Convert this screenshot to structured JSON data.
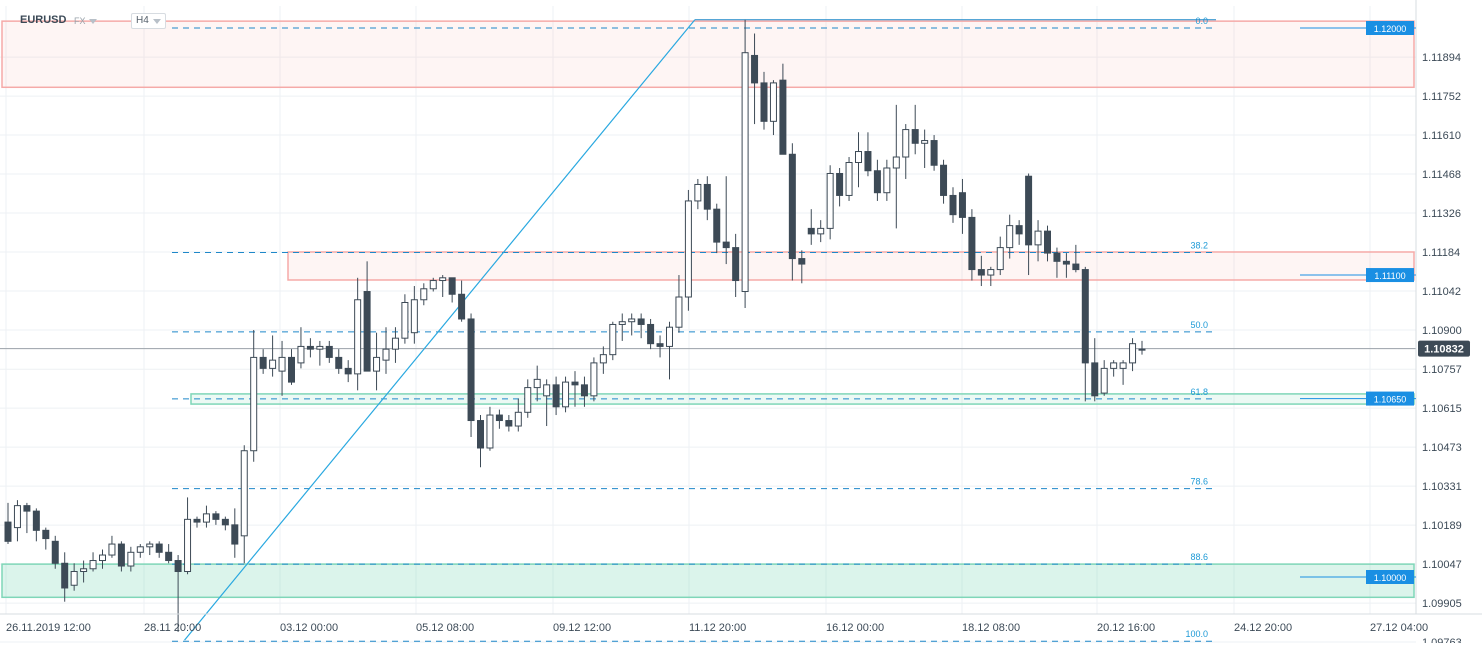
{
  "header": {
    "symbol": "EURUSD",
    "symbol_type": "FX",
    "timeframe": "H4"
  },
  "colors": {
    "bull_fill": "#ffffff",
    "bear_fill": "#3d4a56",
    "candle_stroke": "#3d4a56",
    "fib_line": "#1e88c9",
    "fib_label": "#1e9ad6",
    "resistance_zone": "#f5aaa8",
    "support_zone": "#7fd6b8",
    "price_tag": "#1a8fe3",
    "current_tag": "#3d4a56",
    "trend_line": "#29a8e0"
  },
  "chart_data": {
    "type": "candlestick",
    "symbol": "EURUSD",
    "timeframe": "H4",
    "y_axis": {
      "min": 1.0976,
      "max": 1.1205,
      "ticks": [
        "1.11894",
        "1.11752",
        "1.11610",
        "1.11468",
        "1.11326",
        "1.11184",
        "1.11042",
        "1.10900",
        "1.10757",
        "1.10615",
        "1.10473",
        "1.10331",
        "1.10189",
        "1.10047",
        "1.09905",
        "1.09763"
      ]
    },
    "x_axis": {
      "labels": [
        "26.11.2019  12:00",
        "28.11  20:00",
        "03.12  00:00",
        "05.12  08:00",
        "09.12  12:00",
        "11.12  20:00",
        "16.12  00:00",
        "18.12  08:00",
        "20.12  16:00",
        "24.12  20:00",
        "27.12  04:00"
      ]
    },
    "candles": [
      [
        1.102,
        1.1027,
        1.1012,
        1.1013
      ],
      [
        1.1018,
        1.1028,
        1.1013,
        1.1026
      ],
      [
        1.1026,
        1.1027,
        1.1016,
        1.1024
      ],
      [
        1.1024,
        1.1025,
        1.1013,
        1.1017
      ],
      [
        1.1017,
        1.1018,
        1.101,
        1.1014
      ],
      [
        1.1013,
        1.1015,
        1.1003,
        1.1005
      ],
      [
        1.1005,
        1.1009,
        1.0991,
        1.0996
      ],
      [
        1.0997,
        1.1005,
        1.0995,
        1.1002
      ],
      [
        1.1002,
        1.1006,
        1.0998,
        1.1003
      ],
      [
        1.1003,
        1.1009,
        1.1002,
        1.1006
      ],
      [
        1.1006,
        1.101,
        1.1003,
        1.1008
      ],
      [
        1.1008,
        1.1015,
        1.1007,
        1.1012
      ],
      [
        1.1012,
        1.1013,
        1.1002,
        1.1004
      ],
      [
        1.1004,
        1.1011,
        1.1002,
        1.1009
      ],
      [
        1.1009,
        1.1012,
        1.1007,
        1.1011
      ],
      [
        1.1011,
        1.1013,
        1.1008,
        1.1012
      ],
      [
        1.1012,
        1.1013,
        1.1007,
        1.1009
      ],
      [
        1.1009,
        1.1012,
        1.1005,
        1.1006
      ],
      [
        1.1006,
        1.1008,
        1.098,
        1.1002
      ],
      [
        1.1002,
        1.1029,
        1.1001,
        1.1021
      ],
      [
        1.1021,
        1.1022,
        1.1018,
        1.102
      ],
      [
        1.102,
        1.1026,
        1.1018,
        1.1023
      ],
      [
        1.1023,
        1.1024,
        1.1019,
        1.1021
      ],
      [
        1.1021,
        1.1022,
        1.1017,
        1.1019
      ],
      [
        1.1019,
        1.1025,
        1.1007,
        1.1012
      ],
      [
        1.1015,
        1.1048,
        1.1005,
        1.1046
      ],
      [
        1.1046,
        1.109,
        1.1042,
        1.108
      ],
      [
        1.108,
        1.1083,
        1.1074,
        1.1076
      ],
      [
        1.1076,
        1.1088,
        1.1073,
        1.1079
      ],
      [
        1.1075,
        1.1086,
        1.1066,
        1.108
      ],
      [
        1.108,
        1.1083,
        1.107,
        1.1071
      ],
      [
        1.1078,
        1.1091,
        1.1076,
        1.1084
      ],
      [
        1.1084,
        1.1087,
        1.108,
        1.1083
      ],
      [
        1.1083,
        1.1086,
        1.1077,
        1.1084
      ],
      [
        1.1084,
        1.1086,
        1.1078,
        1.108
      ],
      [
        1.108,
        1.1083,
        1.1074,
        1.1076
      ],
      [
        1.1076,
        1.1079,
        1.1071,
        1.1074
      ],
      [
        1.1074,
        1.1109,
        1.1068,
        1.1101
      ],
      [
        1.1104,
        1.1115,
        1.1077,
        1.1075
      ],
      [
        1.1075,
        1.1089,
        1.1068,
        1.108
      ],
      [
        1.1079,
        1.1091,
        1.1074,
        1.1083
      ],
      [
        1.1083,
        1.1091,
        1.1078,
        1.1087
      ],
      [
        1.1087,
        1.1103,
        1.1085,
        1.11
      ],
      [
        1.1089,
        1.1106,
        1.1085,
        1.1101
      ],
      [
        1.1101,
        1.1107,
        1.1099,
        1.1105
      ],
      [
        1.1105,
        1.1109,
        1.1104,
        1.1108
      ],
      [
        1.1108,
        1.111,
        1.1102,
        1.1109
      ],
      [
        1.1109,
        1.1109,
        1.11,
        1.1103
      ],
      [
        1.1103,
        1.1108,
        1.1093,
        1.1094
      ],
      [
        1.1094,
        1.1096,
        1.1051,
        1.1057
      ],
      [
        1.1057,
        1.1059,
        1.104,
        1.1047
      ],
      [
        1.1047,
        1.1062,
        1.1046,
        1.1059
      ],
      [
        1.1059,
        1.1061,
        1.1054,
        1.1057
      ],
      [
        1.1057,
        1.1059,
        1.1053,
        1.1055
      ],
      [
        1.1055,
        1.1065,
        1.1053,
        1.106
      ],
      [
        1.106,
        1.1072,
        1.1058,
        1.1069
      ],
      [
        1.1069,
        1.1077,
        1.1064,
        1.1072
      ],
      [
        1.1066,
        1.1072,
        1.1055,
        1.107
      ],
      [
        1.107,
        1.1073,
        1.1059,
        1.1062
      ],
      [
        1.1062,
        1.1073,
        1.106,
        1.1071
      ],
      [
        1.1071,
        1.1075,
        1.1062,
        1.107
      ],
      [
        1.107,
        1.1073,
        1.1062,
        1.1066
      ],
      [
        1.1066,
        1.108,
        1.1064,
        1.1078
      ],
      [
        1.1078,
        1.1084,
        1.1074,
        1.1081
      ],
      [
        1.1081,
        1.1093,
        1.1079,
        1.1092
      ],
      [
        1.1092,
        1.1096,
        1.1086,
        1.1093
      ],
      [
        1.1093,
        1.1096,
        1.1088,
        1.1094
      ],
      [
        1.1094,
        1.1096,
        1.1087,
        1.1092
      ],
      [
        1.1092,
        1.1094,
        1.1083,
        1.1085
      ],
      [
        1.1085,
        1.1088,
        1.108,
        1.1084
      ],
      [
        1.1084,
        1.1093,
        1.1072,
        1.1091
      ],
      [
        1.1091,
        1.111,
        1.1089,
        1.1102
      ],
      [
        1.1102,
        1.1141,
        1.1097,
        1.1137
      ],
      [
        1.1137,
        1.1145,
        1.1134,
        1.1143
      ],
      [
        1.1143,
        1.1146,
        1.113,
        1.1134
      ],
      [
        1.1134,
        1.1136,
        1.1118,
        1.1122
      ],
      [
        1.1122,
        1.1146,
        1.1114,
        1.112
      ],
      [
        1.112,
        1.1125,
        1.1102,
        1.1108
      ],
      [
        1.1104,
        1.1203,
        1.1098,
        1.1191
      ],
      [
        1.119,
        1.1198,
        1.1165,
        1.118
      ],
      [
        1.118,
        1.1184,
        1.1163,
        1.1166
      ],
      [
        1.1166,
        1.1181,
        1.1161,
        1.118
      ],
      [
        1.1181,
        1.1187,
        1.1156,
        1.1154
      ],
      [
        1.1154,
        1.1158,
        1.1108,
        1.1116
      ],
      [
        1.1116,
        1.1119,
        1.1107,
        1.1114
      ],
      [
        1.1127,
        1.1134,
        1.1121,
        1.1125
      ],
      [
        1.1125,
        1.113,
        1.1122,
        1.1127
      ],
      [
        1.1127,
        1.115,
        1.1123,
        1.1147
      ],
      [
        1.1147,
        1.1149,
        1.1135,
        1.1139
      ],
      [
        1.1139,
        1.1153,
        1.1137,
        1.1151
      ],
      [
        1.1151,
        1.1162,
        1.1142,
        1.1155
      ],
      [
        1.1155,
        1.1162,
        1.1146,
        1.1148
      ],
      [
        1.1148,
        1.1152,
        1.1137,
        1.114
      ],
      [
        1.114,
        1.1152,
        1.1137,
        1.1149
      ],
      [
        1.1149,
        1.1172,
        1.1127,
        1.1153
      ],
      [
        1.1153,
        1.1165,
        1.1145,
        1.1163
      ],
      [
        1.1163,
        1.1172,
        1.1154,
        1.1158
      ],
      [
        1.1158,
        1.1163,
        1.1149,
        1.1159
      ],
      [
        1.1159,
        1.1161,
        1.1148,
        1.115
      ],
      [
        1.115,
        1.1152,
        1.1136,
        1.1139
      ],
      [
        1.1139,
        1.1142,
        1.1129,
        1.1132
      ],
      [
        1.114,
        1.1145,
        1.1125,
        1.1131
      ],
      [
        1.1131,
        1.1134,
        1.1108,
        1.1112
      ],
      [
        1.1112,
        1.1117,
        1.1106,
        1.111
      ],
      [
        1.111,
        1.1113,
        1.1106,
        1.1112
      ],
      [
        1.1112,
        1.1124,
        1.111,
        1.112
      ],
      [
        1.112,
        1.1132,
        1.1116,
        1.1128
      ],
      [
        1.1128,
        1.113,
        1.1121,
        1.1125
      ],
      [
        1.1146,
        1.1147,
        1.111,
        1.1121
      ],
      [
        1.1121,
        1.113,
        1.1115,
        1.1126
      ],
      [
        1.1126,
        1.1128,
        1.1115,
        1.1118
      ],
      [
        1.1118,
        1.112,
        1.1109,
        1.1115
      ],
      [
        1.1115,
        1.1118,
        1.1109,
        1.1114
      ],
      [
        1.1114,
        1.1121,
        1.1111,
        1.1112
      ],
      [
        1.1112,
        1.1113,
        1.1064,
        1.1078
      ],
      [
        1.1078,
        1.1087,
        1.1064,
        1.1066
      ],
      [
        1.1067,
        1.1079,
        1.1066,
        1.1076
      ],
      [
        1.1076,
        1.1079,
        1.1073,
        1.1078
      ],
      [
        1.1076,
        1.1079,
        1.107,
        1.1078
      ],
      [
        1.1078,
        1.1087,
        1.1075,
        1.1085
      ],
      [
        1.1083,
        1.1086,
        1.1081,
        1.1083
      ]
    ],
    "fib_levels": [
      {
        "label": "0.0",
        "price": 1.12
      },
      {
        "label": "38.2",
        "price": 1.11182
      },
      {
        "label": "50.0",
        "price": 1.10893
      },
      {
        "label": "61.8",
        "price": 1.10649
      },
      {
        "label": "78.6",
        "price": 1.10322
      },
      {
        "label": "88.6",
        "price": 1.10047
      },
      {
        "label": "100.0",
        "price": 1.09766
      }
    ],
    "zones": [
      {
        "name": "resistance-zone-top",
        "from": 1.11784,
        "to": 1.12025
      },
      {
        "name": "resistance-zone-mid",
        "from": 1.11082,
        "to": 1.11184
      },
      {
        "name": "support-zone-mid",
        "from": 1.1063,
        "to": 1.10667
      },
      {
        "name": "support-zone-bottom",
        "from": 1.09926,
        "to": 1.10047
      }
    ],
    "price_tags": [
      {
        "label": "1.12000",
        "price": 1.12
      },
      {
        "label": "1.11100",
        "price": 1.111
      },
      {
        "label": "1.10650",
        "price": 1.1065
      },
      {
        "label": "1.10000",
        "price": 1.1
      }
    ],
    "current_price": {
      "label": "1.10832",
      "price": 1.10832
    },
    "trend_line": {
      "from": {
        "candle": 19,
        "price": 1.0977
      },
      "to": {
        "candle": 73,
        "price": 1.1203
      }
    }
  }
}
